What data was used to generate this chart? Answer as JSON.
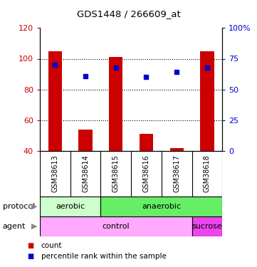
{
  "title": "GDS1448 / 266609_at",
  "samples": [
    "GSM38613",
    "GSM38614",
    "GSM38615",
    "GSM38616",
    "GSM38617",
    "GSM38618"
  ],
  "bar_bottoms": [
    40,
    40,
    40,
    40,
    40,
    40
  ],
  "bar_tops": [
    105,
    54,
    101,
    51,
    42,
    105
  ],
  "blue_dots_pct": [
    70,
    61,
    68,
    60,
    64,
    68
  ],
  "ylim_left": [
    40,
    120
  ],
  "ylim_right": [
    0,
    100
  ],
  "yticks_left": [
    40,
    60,
    80,
    100,
    120
  ],
  "yticks_right": [
    0,
    25,
    50,
    75,
    100
  ],
  "ytick_labels_right": [
    "0",
    "25",
    "50",
    "75",
    "100%"
  ],
  "bar_color": "#cc0000",
  "dot_color": "#0000cc",
  "left_tick_color": "#cc0000",
  "right_tick_color": "#0000cc",
  "protocol_labels": [
    [
      "aerobic",
      0,
      2
    ],
    [
      "anaerobic",
      2,
      6
    ]
  ],
  "protocol_colors": [
    "#ccffcc",
    "#66ee66"
  ],
  "agent_labels": [
    [
      "control",
      0,
      5
    ],
    [
      "sucrose",
      5,
      6
    ]
  ],
  "agent_colors": [
    "#ffaaff",
    "#ee44ee"
  ],
  "arrow_color": "#888888",
  "bg_color": "#ffffff",
  "sample_bg_color": "#c8c8c8",
  "figsize": [
    3.61,
    3.75
  ],
  "dpi": 100
}
